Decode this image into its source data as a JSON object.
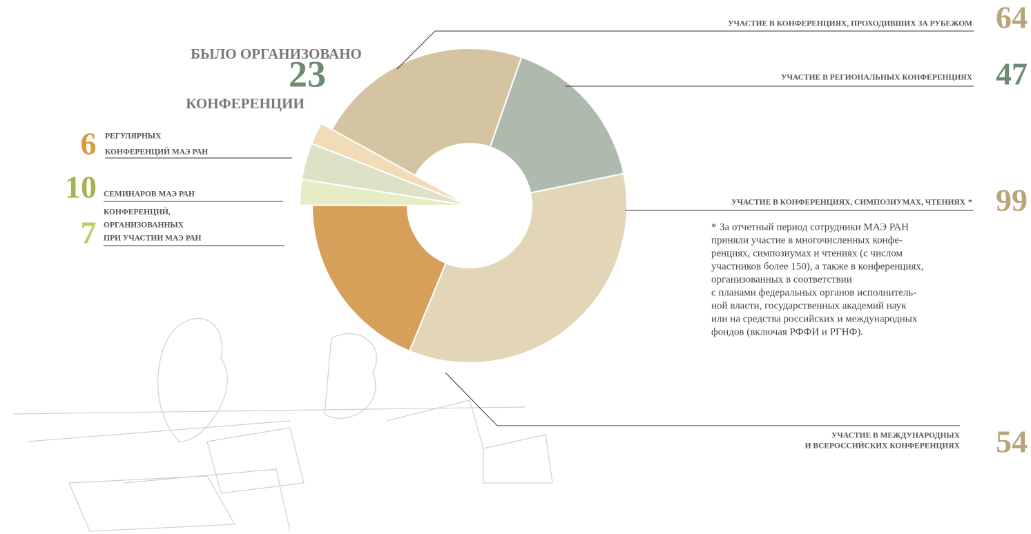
{
  "chart_data": {
    "type": "pie",
    "title_top": "БЫЛО ОРГАНИЗОВАНО",
    "total": 23,
    "title_bottom": "КОНФЕРЕНЦИИ",
    "categories": [
      [
        "УЧАСТИЕ В КОНФЕРЕНЦИЯХ, ПРОХОДИВШИХ ЗА РУБЕЖОМ"
      ],
      [
        "УЧАСТИЕ В РЕГИОНАЛЬНЫХ КОНФЕРЕНЦИЯХ"
      ],
      [
        "УЧАСТИЕ В КОНФЕРЕНЦИЯХ, СИМПОЗИУМАХ, ЧТЕНИЯХ"
      ],
      [
        "УЧАСТИЕ В МЕЖДУНАРОДНЫХ",
        "И ВСЕРОССИЙСКИХ КОНФЕРЕНЦИЯХ"
      ],
      [
        "КОНФЕРЕНЦИЙ,",
        "ОРГАНИЗОВАННЫХ",
        "ПРИ УЧАСТИИ МАЭ РАН"
      ],
      [
        "СЕМИНАРОВ МАЭ РАН"
      ],
      [
        "РЕГУЛЯРНЫХ",
        "КОНФЕРЕНЦИЙ МАЭ РАН"
      ]
    ],
    "values": [
      64,
      47,
      99,
      54,
      7,
      10,
      6
    ],
    "colors": [
      "#d4c4a2",
      "#afbaae",
      "#e3d6b8",
      "#d6a05a",
      "#e6edc6",
      "#dfe1c6",
      "#f2dcb8"
    ],
    "label_colors": [
      "#b8a57a",
      "#6d8a72",
      "#b8a57a",
      "#b8a57a",
      "#b8d060",
      "#a8b050",
      "#d99a3b"
    ],
    "exploded": [
      false,
      false,
      false,
      false,
      true,
      true,
      true
    ],
    "total_color": "#6d8a72",
    "asterisk_on": 2,
    "asterisk": "*",
    "footnote": [
      "За отчетный период сотрудники МАЭ РАН",
      "приняли участие в многочисленных конфе-",
      "ренциях, симпозиумах и чтениях (с числом",
      "участников более 150), а также в конференциях,",
      "организованных в соответствии",
      "с планами федеральных органов исполнитель-",
      "ной власти, государственных академий наук",
      "или на средства российских и международных",
      "фондов (включая РФФИ и РГНФ)."
    ]
  }
}
